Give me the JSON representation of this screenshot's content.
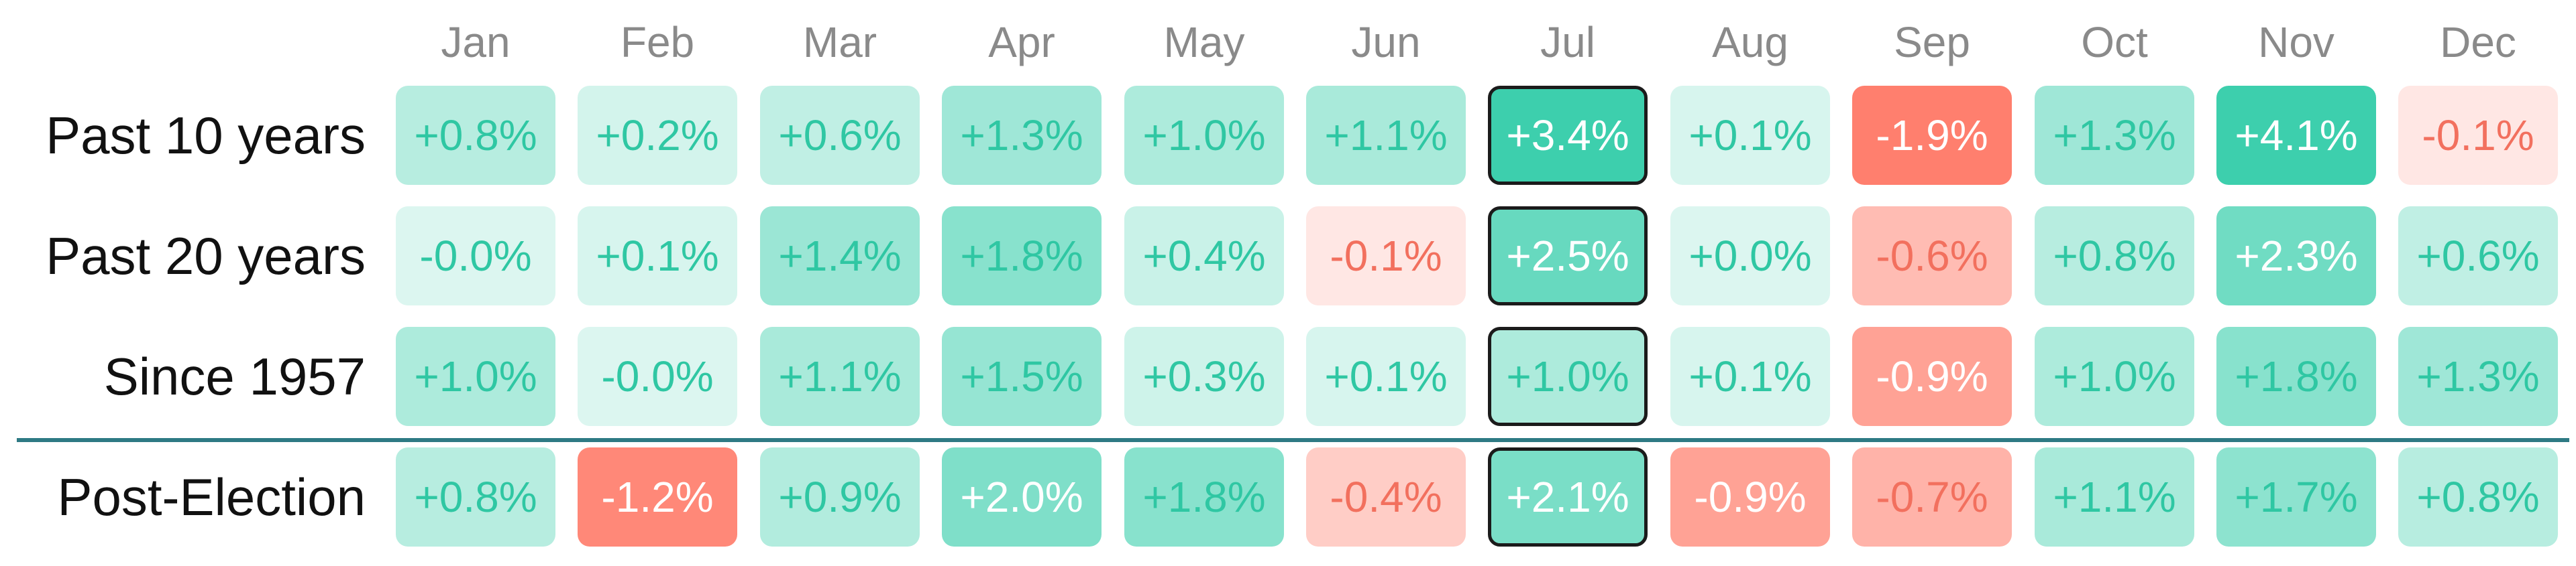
{
  "chart_data": {
    "type": "heatmap",
    "columns": [
      "Jan",
      "Feb",
      "Mar",
      "Apr",
      "May",
      "Jun",
      "Jul",
      "Aug",
      "Sep",
      "Oct",
      "Nov",
      "Dec"
    ],
    "highlight_column": "Jul",
    "divider_after_row": 2,
    "positive_color": "#3dcfad",
    "negative_color": "#ff7f6e",
    "rows": [
      {
        "label": "Past 10 years",
        "values": [
          0.8,
          0.2,
          0.6,
          1.3,
          1.0,
          1.1,
          3.4,
          0.1,
          -1.9,
          1.3,
          4.1,
          -0.1
        ],
        "labels": [
          "+0.8%",
          "+0.2%",
          "+0.6%",
          "+1.3%",
          "+1.0%",
          "+1.1%",
          "+3.4%",
          "+0.1%",
          "-1.9%",
          "+1.3%",
          "+4.1%",
          "-0.1%"
        ]
      },
      {
        "label": "Past 20 years",
        "values": [
          -0.0,
          0.1,
          1.4,
          1.8,
          0.4,
          -0.1,
          2.5,
          0.0,
          -0.6,
          0.8,
          2.3,
          0.6
        ],
        "labels": [
          "-0.0%",
          "+0.1%",
          "+1.4%",
          "+1.8%",
          "+0.4%",
          "-0.1%",
          "+2.5%",
          "+0.0%",
          "-0.6%",
          "+0.8%",
          "+2.3%",
          "+0.6%"
        ]
      },
      {
        "label": "Since 1957",
        "values": [
          1.0,
          -0.0,
          1.1,
          1.5,
          0.3,
          0.1,
          1.0,
          0.1,
          -0.9,
          1.0,
          1.8,
          1.3
        ],
        "labels": [
          "+1.0%",
          "-0.0%",
          "+1.1%",
          "+1.5%",
          "+0.3%",
          "+0.1%",
          "+1.0%",
          "+0.1%",
          "-0.9%",
          "+1.0%",
          "+1.8%",
          "+1.3%"
        ]
      },
      {
        "label": "Post-Election",
        "values": [
          0.8,
          -1.2,
          0.9,
          2.0,
          1.8,
          -0.4,
          2.1,
          -0.9,
          -0.7,
          1.1,
          1.7,
          0.8
        ],
        "labels": [
          "+0.8%",
          "-1.2%",
          "+0.9%",
          "+2.0%",
          "+1.8%",
          "-0.4%",
          "+2.1%",
          "-0.9%",
          "-0.7%",
          "+1.1%",
          "+1.7%",
          "+0.8%"
        ]
      }
    ]
  }
}
